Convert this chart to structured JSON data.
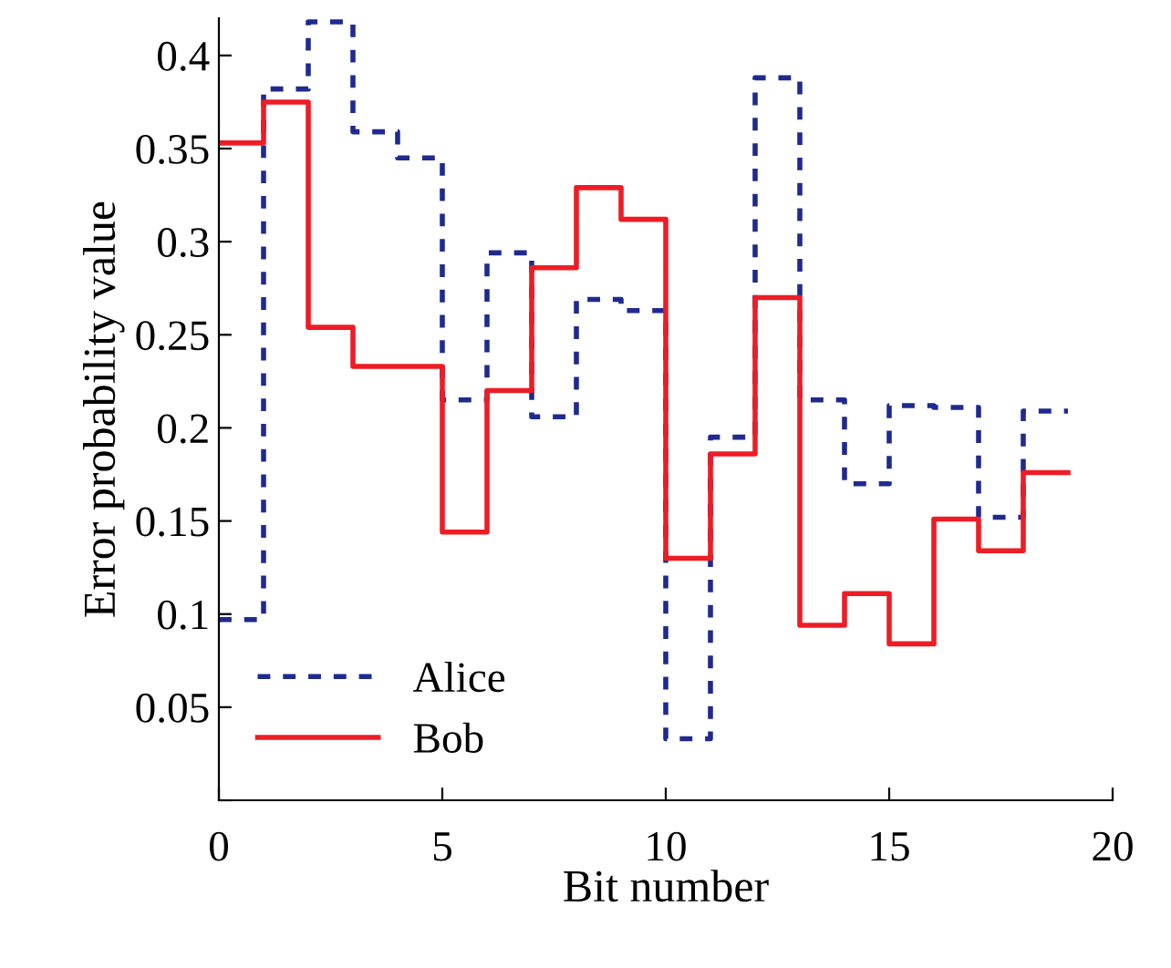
{
  "chart_data": {
    "type": "step",
    "xlabel": "Bit number",
    "ylabel": "Error probability value",
    "x": [
      0,
      1,
      2,
      3,
      4,
      5,
      6,
      7,
      8,
      9,
      10,
      11,
      12,
      13,
      14,
      15,
      16,
      17,
      18,
      19
    ],
    "series": [
      {
        "name": "Alice",
        "color": "#1f2a8f",
        "line_style": "dashed",
        "values": [
          0.097,
          0.382,
          0.418,
          0.359,
          0.345,
          0.215,
          0.294,
          0.206,
          0.269,
          0.263,
          0.033,
          0.195,
          0.388,
          0.215,
          0.17,
          0.212,
          0.211,
          0.152,
          0.209,
          0.209
        ]
      },
      {
        "name": "Bob",
        "color": "#ee1c25",
        "line_style": "solid",
        "values": [
          0.353,
          0.375,
          0.254,
          0.233,
          0.233,
          0.144,
          0.22,
          0.286,
          0.329,
          0.312,
          0.13,
          0.186,
          0.27,
          0.094,
          0.111,
          0.084,
          0.151,
          0.134,
          0.176,
          0.176
        ]
      }
    ],
    "xlim": [
      0,
      20
    ],
    "xticks": [
      0,
      5,
      10,
      15,
      20
    ],
    "ylim": [
      0,
      0.42
    ],
    "yticks": [
      {
        "value": 0,
        "label": null
      },
      0.05,
      0.1,
      0.15,
      0.2,
      0.25,
      0.3,
      0.35,
      0.4
    ],
    "grid": false,
    "legend": "bottom left"
  }
}
